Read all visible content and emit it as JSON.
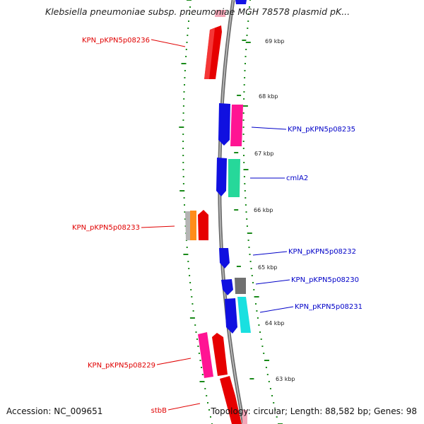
{
  "title": "Klebsiella pneumoniae subsp. pneumoniae MGH 78578 plasmid pK...",
  "footer": {
    "accession": "Accession: NC_009651",
    "topology": "Topology: circular; Length: 88,582 bp; Genes: 98"
  },
  "map": {
    "colors": {
      "backbone": "#8a8a8a",
      "gc_dots": "#1a8a1a",
      "red_label": "#e00000",
      "blue_label": "#0000c8"
    },
    "kbp_labels": [
      "69 kbp",
      "68 kbp",
      "67 kbp",
      "66 kbp",
      "65 kbp",
      "64 kbp",
      "63 kbp"
    ],
    "gene_labels": [
      {
        "text": "KPN_pKPN5p08236",
        "color": "red"
      },
      {
        "text": "KPN_pKPN5p08235",
        "color": "blue"
      },
      {
        "text": "cmlA2",
        "color": "blue"
      },
      {
        "text": "KPN_pKPN5p08233",
        "color": "red"
      },
      {
        "text": "KPN_pKPN5p08232",
        "color": "blue"
      },
      {
        "text": "KPN_pKPN5p08230",
        "color": "blue"
      },
      {
        "text": "KPN_pKPN5p08231",
        "color": "blue"
      },
      {
        "text": "KPN_pKPN5p08229",
        "color": "red"
      },
      {
        "text": "stbB",
        "color": "red"
      }
    ]
  }
}
